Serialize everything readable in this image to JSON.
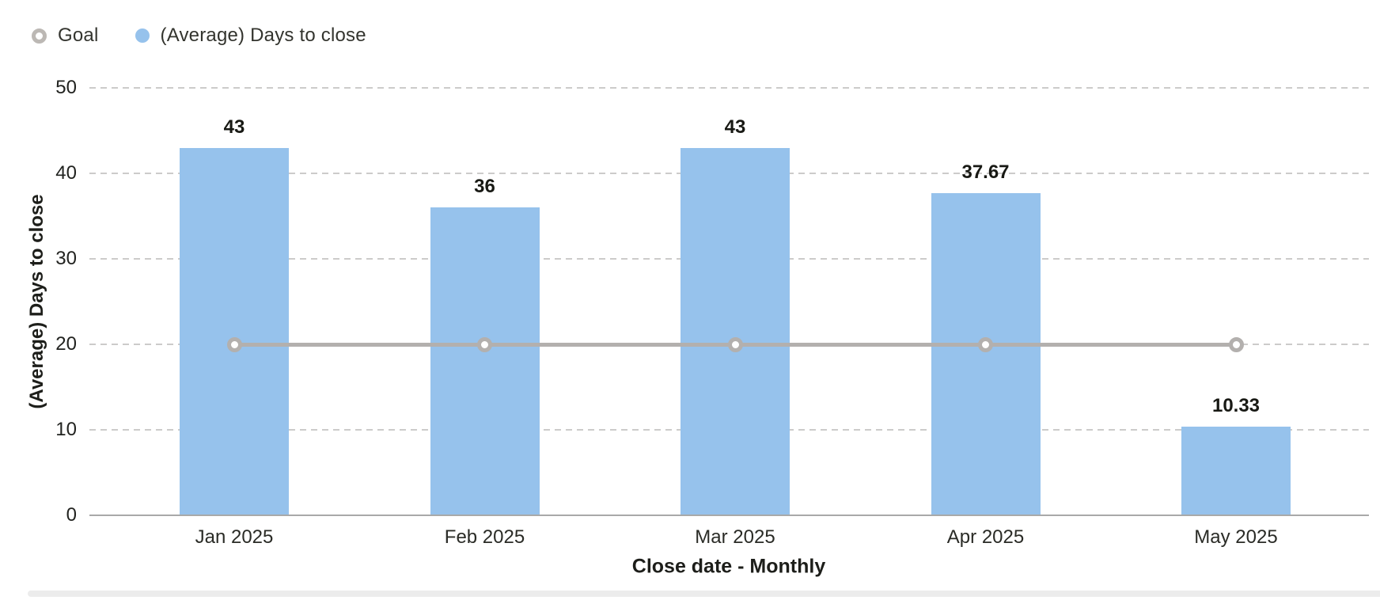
{
  "legend": {
    "items": [
      {
        "label": "Goal",
        "marker": "open-circle-icon",
        "color": "#bcb8b4"
      },
      {
        "label": "(Average) Days to close",
        "marker": "filled-circle-icon",
        "color": "#96c2ec"
      }
    ]
  },
  "chart_data": {
    "type": "bar",
    "title": "",
    "categories": [
      "Jan 2025",
      "Feb 2025",
      "Mar 2025",
      "Apr 2025",
      "May 2025"
    ],
    "series": [
      {
        "name": "(Average) Days to close",
        "type": "bar",
        "color": "#96c2ec",
        "values": [
          43,
          36,
          43,
          37.67,
          10.33
        ],
        "value_labels": [
          "43",
          "36",
          "43",
          "37.67",
          "10.33"
        ]
      },
      {
        "name": "Goal",
        "type": "line",
        "color": "#b3b0ae",
        "marker": "open-circle",
        "values": [
          20,
          20,
          20,
          20,
          20
        ]
      }
    ],
    "xlabel": "Close date - Monthly",
    "ylabel": "(Average) Days to close",
    "ylim": [
      0,
      50
    ],
    "yticks": [
      0,
      10,
      20,
      30,
      40,
      50
    ],
    "grid": "horizontal-dashed",
    "legend_position": "top-left"
  }
}
